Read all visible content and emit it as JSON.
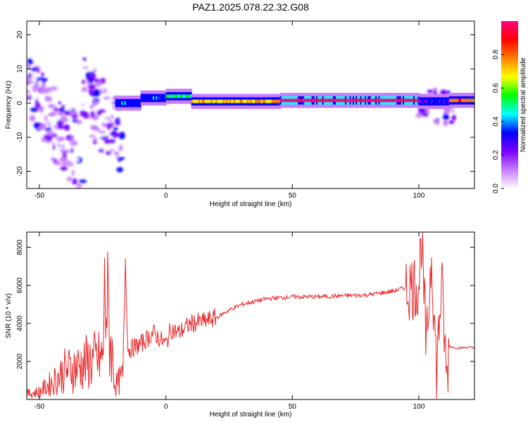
{
  "title": "PAZ1.2025.078.22.32.G08",
  "chart_data": [
    {
      "type": "heatmap",
      "xlabel": "Height of straight line (km)",
      "ylabel": "Frequency (Hz)",
      "xlim": [
        -55,
        122
      ],
      "ylim": [
        -25,
        24
      ],
      "xticks": [
        -50,
        0,
        50,
        100
      ],
      "yticks": [
        20,
        10,
        0,
        -10,
        -20
      ],
      "colorbar": {
        "label": "Normalized spectral amplitude",
        "range": [
          0,
          1
        ],
        "ticks": [
          0.0,
          0.2,
          0.4,
          0.6,
          0.8
        ],
        "tick_labels": [
          "0.0",
          "0.2",
          "0.4",
          "0.6",
          "0.8"
        ],
        "colormap": [
          "#ffffff",
          "#c77dff",
          "#7b00ff",
          "#0000ff",
          "#00ffff",
          "#00ff00",
          "#ffff00",
          "#ff8000",
          "#ff0000",
          "#ff0080"
        ]
      },
      "ridge": [
        {
          "x0": -20,
          "x1": -10,
          "f": 0.0,
          "amp": 0.35
        },
        {
          "x0": -10,
          "x1": 0,
          "f": 1.5,
          "amp": 0.35
        },
        {
          "x0": 0,
          "x1": 10,
          "f": 2.0,
          "amp": 0.5
        },
        {
          "x0": 10,
          "x1": 45,
          "f": 0.5,
          "amp": 0.7
        },
        {
          "x0": 45,
          "x1": 100,
          "f": 0.8,
          "amp": 0.95
        },
        {
          "x0": 100,
          "x1": 112,
          "f": 0.5,
          "amp": 0.3
        },
        {
          "x0": 112,
          "x1": 122,
          "f": 0.8,
          "amp": 0.75
        }
      ]
    },
    {
      "type": "line",
      "xlabel": "Height of straight line (km)",
      "ylabel": "SNR (10 * v/v)",
      "xlim": [
        -55,
        122
      ],
      "ylim": [
        0,
        8800
      ],
      "xticks": [
        -50,
        0,
        50,
        100
      ],
      "yticks": [
        2000,
        4000,
        6000,
        8000
      ],
      "series": [
        {
          "color": "#e8282a",
          "x": [
            -55,
            -50,
            -45,
            -40,
            -35,
            -30,
            -25,
            -24,
            -20,
            -17,
            -16,
            -15,
            -10,
            -5,
            0,
            2,
            5,
            10,
            15,
            20,
            25,
            30,
            40,
            50,
            60,
            70,
            80,
            85,
            90,
            95,
            100,
            101,
            103,
            105,
            107,
            109,
            111,
            112,
            115,
            120,
            122
          ],
          "y": [
            300,
            400,
            900,
            1500,
            1700,
            2000,
            2100,
            5800,
            700,
            1200,
            7400,
            2600,
            2900,
            3500,
            2900,
            3700,
            3500,
            4000,
            4100,
            4300,
            4700,
            5000,
            5300,
            5400,
            5400,
            5450,
            5500,
            5600,
            5700,
            5900,
            6000,
            8600,
            2500,
            7800,
            1500,
            6200,
            1000,
            2800,
            2700,
            2750,
            2700
          ]
        }
      ]
    }
  ]
}
